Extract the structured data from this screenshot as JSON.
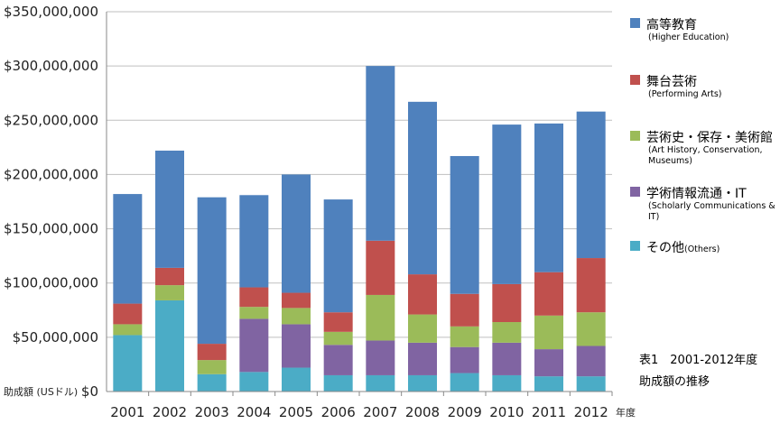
{
  "chart_data": {
    "type": "bar",
    "stacked": true,
    "categories": [
      "2001",
      "2002",
      "2003",
      "2004",
      "2005",
      "2006",
      "2007",
      "2008",
      "2009",
      "2010",
      "2011",
      "2012"
    ],
    "series": [
      {
        "name": "その他",
        "name_en": "(Others)",
        "color": "#4bacc6",
        "values": [
          52000000,
          84000000,
          16000000,
          18000000,
          22000000,
          15000000,
          15000000,
          15000000,
          17000000,
          15000000,
          14000000,
          14000000
        ]
      },
      {
        "name": "学術情報流通・IT",
        "name_en": "(Scholarly Communications & IT)",
        "color": "#8064a2",
        "values": [
          0,
          0,
          0,
          49000000,
          40000000,
          28000000,
          32000000,
          30000000,
          24000000,
          30000000,
          25000000,
          28000000
        ]
      },
      {
        "name": "芸術史・保存・美術館",
        "name_en": "(Art History, Conservation, Museums)",
        "color": "#9bbb59",
        "values": [
          10000000,
          14000000,
          13000000,
          11000000,
          15000000,
          12000000,
          42000000,
          26000000,
          19000000,
          19000000,
          31000000,
          31000000
        ]
      },
      {
        "name": "舞台芸術",
        "name_en": "(Performing Arts)",
        "color": "#c0504d",
        "values": [
          19000000,
          16000000,
          15000000,
          18000000,
          14000000,
          18000000,
          50000000,
          37000000,
          30000000,
          35000000,
          40000000,
          50000000
        ]
      },
      {
        "name": "高等教育",
        "name_en": "(Higher Education)",
        "color": "#4f81bd",
        "values": [
          101000000,
          108000000,
          135000000,
          85000000,
          109000000,
          104000000,
          161000000,
          159000000,
          127000000,
          147000000,
          137000000,
          135000000
        ]
      }
    ],
    "ylim": [
      0,
      350000000
    ],
    "yticks": [
      "$0",
      "$50,000,000",
      "$100,000,000",
      "$150,000,000",
      "$200,000,000",
      "$250,000,000",
      "$300,000,000",
      "$350,000,000"
    ],
    "ylabel": "助成額 (USドル)",
    "xlabel": "年度",
    "grid": true,
    "legend_position": "right"
  },
  "caption": {
    "line1": "表1　2001-2012年度",
    "line2": "助成額の推移"
  }
}
